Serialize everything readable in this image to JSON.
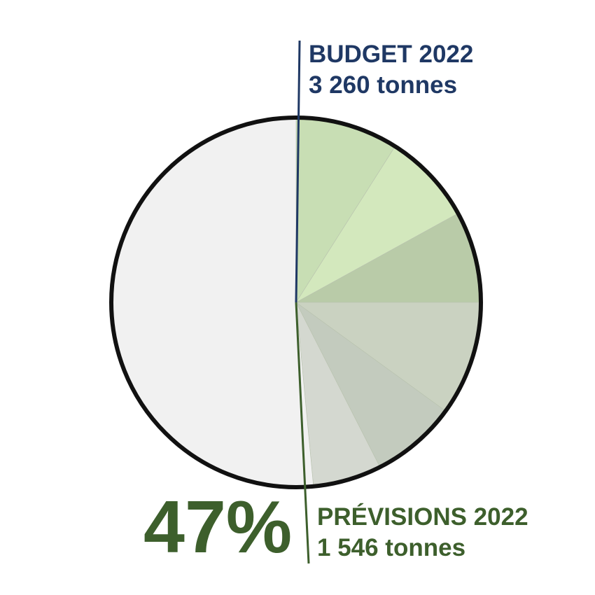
{
  "chart_data": {
    "type": "pie",
    "total": {
      "name": "BUDGET 2022",
      "value_text": "3 260 tonnes",
      "value": 3260,
      "unit": "tonnes"
    },
    "forecast": {
      "name": "PRÉVISIONS 2022",
      "value_text": "1 546 tonnes",
      "value": 1546,
      "unit": "tonnes",
      "percent_text": "47%",
      "fraction": 0.47
    },
    "slices": [
      {
        "value": 9,
        "color": "#c8deb4"
      },
      {
        "value": 8,
        "color": "#d3e8bd"
      },
      {
        "value": 8,
        "color": "#b9cba8"
      },
      {
        "value": 10,
        "color": "#cad2c1"
      },
      {
        "value": 7.5,
        "color": "#c3cbbe"
      },
      {
        "value": 6,
        "color": "#d4d8d0"
      },
      {
        "value": 51.5,
        "color": "#f1f1f1"
      }
    ],
    "budget_line_color": "#1f3864",
    "forecast_line_color": "#3d5f2c",
    "outline_color": "#111111"
  }
}
